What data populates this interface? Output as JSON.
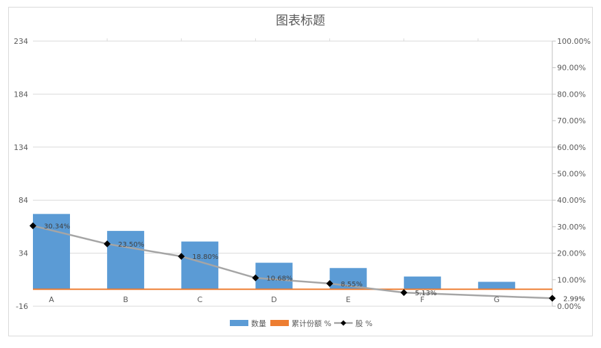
{
  "chart_data": {
    "type": "bar",
    "title": "图表标题",
    "categories": [
      "A",
      "B",
      "C",
      "D",
      "E",
      "F",
      "G"
    ],
    "series": [
      {
        "name": "数量",
        "type": "bar",
        "axis": "primary",
        "color": "#5b9bd5",
        "values": [
          71,
          55,
          45,
          25,
          20,
          12,
          7
        ]
      },
      {
        "name": "累计份额 %",
        "type": "line",
        "axis": "primary",
        "color": "#ed7d31",
        "values": [
          0,
          0,
          0,
          0,
          0,
          0,
          0
        ]
      },
      {
        "name": "股 %",
        "type": "line",
        "axis": "secondary",
        "color": "#a5a5a5",
        "marker": "diamond",
        "marker_color": "#000000",
        "values": [
          0.3034,
          0.235,
          0.188,
          0.1068,
          0.0855,
          0.0513,
          0.0299
        ],
        "data_labels": [
          "30.34%",
          "23.50%",
          "18.80%",
          "10.68%",
          "8.55%",
          "5.13%",
          "2.99%"
        ]
      }
    ],
    "y_primary": {
      "ylim": [
        -16,
        234
      ],
      "ticks": [
        "234",
        "184",
        "134",
        "84",
        "34",
        "-16"
      ],
      "tick_values": [
        234,
        184,
        134,
        84,
        34,
        -16
      ]
    },
    "y_secondary": {
      "ylim": [
        0,
        1
      ],
      "ticks": [
        "100.00%",
        "90.00%",
        "80.00%",
        "70.00%",
        "60.00%",
        "50.00%",
        "40.00%",
        "30.00%",
        "20.00%",
        "10.00%",
        "0.00%"
      ]
    },
    "grid": true,
    "legend": "bottom"
  }
}
